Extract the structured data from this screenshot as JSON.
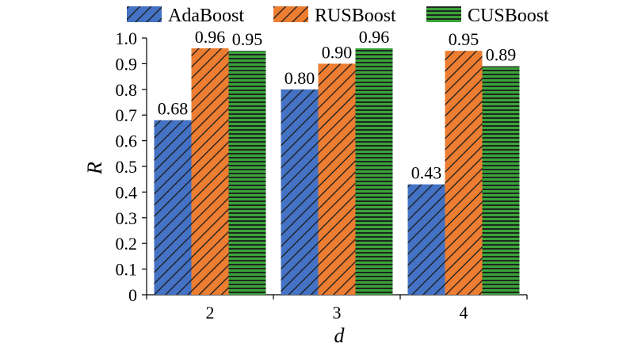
{
  "chart_data": {
    "type": "bar",
    "categories": [
      "2",
      "3",
      "4"
    ],
    "series": [
      {
        "name": "AdaBoost",
        "values": [
          0.68,
          0.8,
          0.43
        ],
        "labels": [
          "0.68",
          "0.80",
          "0.43"
        ],
        "color": "#4472c4",
        "pattern": "diagonal-hatch"
      },
      {
        "name": "RUSBoost",
        "values": [
          0.96,
          0.9,
          0.95
        ],
        "labels": [
          "0.96",
          "0.90",
          "0.95"
        ],
        "color": "#ed7d31",
        "pattern": "diagonal-hatch"
      },
      {
        "name": "CUSBoost",
        "values": [
          0.95,
          0.96,
          0.89
        ],
        "labels": [
          "0.95",
          "0.96",
          "0.89"
        ],
        "color": "#3aa33a",
        "pattern": "horizontal-lines"
      }
    ],
    "xlabel": "d",
    "ylabel": "R",
    "ylim": [
      0,
      1.0
    ],
    "yticks": [
      "0",
      "0.1",
      "0.2",
      "0.3",
      "0.4",
      "0.5",
      "0.6",
      "0.7",
      "0.8",
      "0.9",
      "1.0"
    ],
    "grid": false,
    "legend_position": "top"
  }
}
